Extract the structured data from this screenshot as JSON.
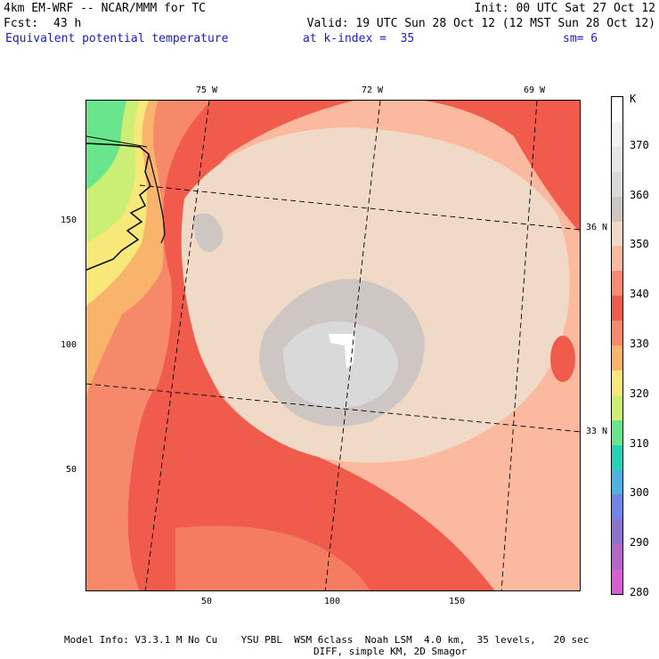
{
  "header": {
    "line1_left": "4km EM-WRF -- NCAR/MMM for TC",
    "line1_right": "Init: 00 UTC Sat 27 Oct 12",
    "line2_left": "Fcst:",
    "line2_hours": "43 h",
    "line2_right": "Valid: 19 UTC Sun 28 Oct 12 (12 MST Sun 28 Oct 12)",
    "field_name": "Equivalent potential temperature",
    "level": "at k-index =  35",
    "smoothing": "sm= 6"
  },
  "map": {
    "x_ticks": [
      "50",
      "100",
      "150"
    ],
    "y_ticks": [
      "150",
      "100",
      "50"
    ],
    "lon_labels": [
      "75 W",
      "72 W",
      "69 W"
    ],
    "lat_labels": [
      "36 N",
      "33 N"
    ]
  },
  "colorbar": {
    "unit": "K",
    "labels": [
      "370",
      "360",
      "350",
      "340",
      "330",
      "320",
      "310",
      "300",
      "290",
      "280"
    ],
    "colors": [
      "#ffffff",
      "#f2f2f2",
      "#e6e6e6",
      "#d9d9d9",
      "#cdc6c2",
      "#f0d9c6",
      "#fbb9a0",
      "#f98a73",
      "#f05b4b",
      "#f7896b",
      "#f9b46c",
      "#f8e87a",
      "#cbef74",
      "#69e68b",
      "#27d3b6",
      "#4eb3e4",
      "#6f86e6",
      "#8e72cf",
      "#b567c8",
      "#d85ed4"
    ]
  },
  "footer": {
    "line1": "Model Info: V3.3.1 M No Cu    YSU PBL  WSM 6class  Noah LSM  4.0 km,  35 levels,   20 sec",
    "line2": "DIFF, simple KM, 2D Smagor"
  }
}
